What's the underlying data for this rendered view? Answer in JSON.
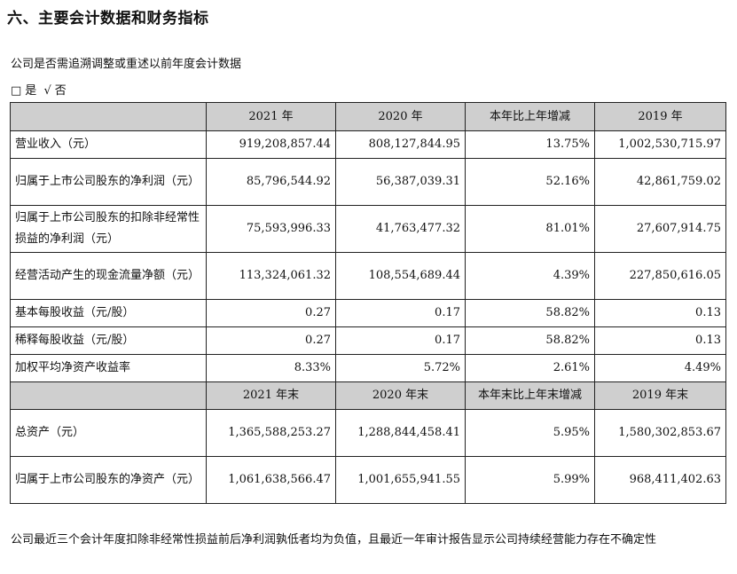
{
  "heading": "六、主要会计数据和财务指标",
  "restate_question": "公司是否需追溯调整或重述以前年度会计数据",
  "restate_options": {
    "yes_box": "□",
    "yes_label": "是",
    "check": "√",
    "no_label": "否"
  },
  "table": {
    "header1": [
      "",
      "2021 年",
      "2020 年",
      "本年比上年增减",
      "2019 年"
    ],
    "rows1": [
      [
        "营业收入（元）",
        "919,208,857.44",
        "808,127,844.95",
        "13.75%",
        "1,002,530,715.97"
      ],
      [
        "归属于上市公司股东的净利润（元）",
        "85,796,544.92",
        "56,387,039.31",
        "52.16%",
        "42,861,759.02"
      ],
      [
        "归属于上市公司股东的扣除非经常性损益的净利润（元）",
        "75,593,996.33",
        "41,763,477.32",
        "81.01%",
        "27,607,914.75"
      ],
      [
        "经营活动产生的现金流量净额（元）",
        "113,324,061.32",
        "108,554,689.44",
        "4.39%",
        "227,850,616.05"
      ],
      [
        "基本每股收益（元/股）",
        "0.27",
        "0.17",
        "58.82%",
        "0.13"
      ],
      [
        "稀释每股收益（元/股）",
        "0.27",
        "0.17",
        "58.82%",
        "0.13"
      ],
      [
        "加权平均净资产收益率",
        "8.33%",
        "5.72%",
        "2.61%",
        "4.49%"
      ]
    ],
    "header2": [
      "",
      "2021 年末",
      "2020 年末",
      "本年末比上年末增减",
      "2019 年末"
    ],
    "rows2": [
      [
        "总资产（元）",
        "1,365,588,253.27",
        "1,288,844,458.41",
        "5.95%",
        "1,580,302,853.67"
      ],
      [
        "归属于上市公司股东的净资产（元）",
        "1,061,638,566.47",
        "1,001,655,941.55",
        "5.99%",
        "968,411,402.63"
      ]
    ]
  },
  "footer": "公司最近三个会计年度扣除非经常性损益前后净利润孰低者均为负值，且最近一年审计报告显示公司持续经营能力存在不确定性",
  "colors": {
    "header_bg": "#cfcfcf",
    "border": "#222222",
    "text": "#111111"
  }
}
